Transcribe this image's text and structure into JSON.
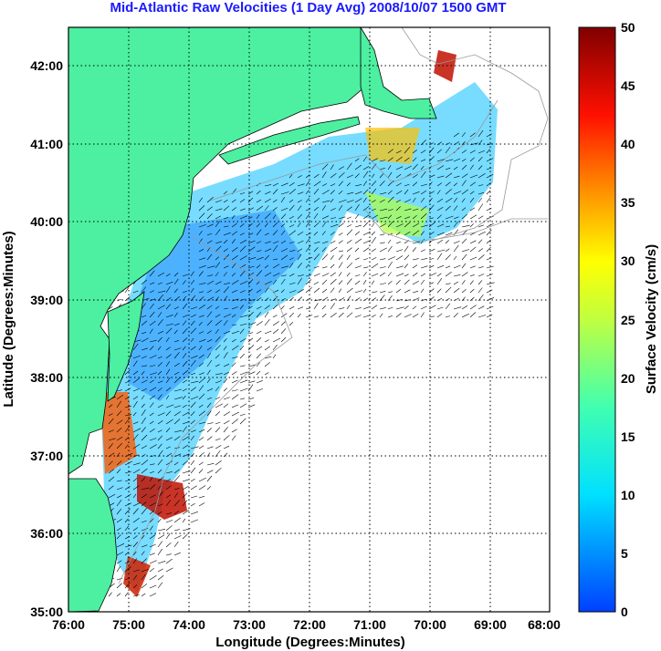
{
  "title": "Mid-Atlantic Raw Velocities (1 Day Avg) 2008/10/07 1500 GMT",
  "xlabel": "Longitude (Degrees:Minutes)",
  "ylabel": "Latitude (Degrees:Minutes)",
  "x_ticks": [
    "76:00",
    "75:00",
    "74:00",
    "73:00",
    "72:00",
    "71:00",
    "70:00",
    "69:00",
    "68:00"
  ],
  "y_ticks": [
    "42:00",
    "41:00",
    "40:00",
    "39:00",
    "38:00",
    "37:00",
    "36:00",
    "35:00"
  ],
  "colorbar": {
    "label": "Surface Velocity (cm/s)",
    "ticks": [
      "50",
      "45",
      "40",
      "35",
      "30",
      "25",
      "20",
      "15",
      "10",
      "5",
      "0"
    ],
    "min": 0,
    "max": 50
  },
  "colors": {
    "land": "#4cf0a0",
    "ocean": "#ffffff",
    "title": "#1a1aff"
  }
}
